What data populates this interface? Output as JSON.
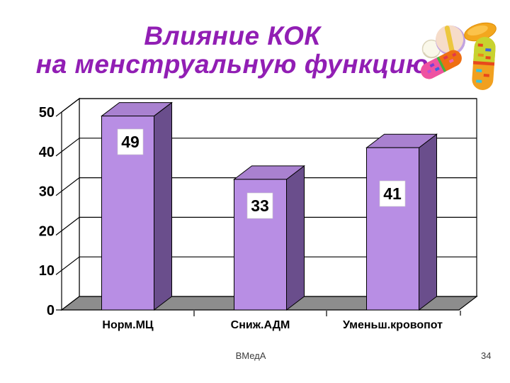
{
  "slide": {
    "title": {
      "line1": "Влияние КОК",
      "line2": "на менструальную функцию",
      "color": "#911EB4"
    },
    "footer": {
      "left": "ВМедА",
      "page_number": "34"
    }
  },
  "icons": {
    "clipart": "pills-clipart-icon"
  },
  "chart_data": {
    "type": "bar",
    "subtype": "3d-column",
    "title": "",
    "categories": [
      "Норм.МЦ",
      "Сниж.АДМ",
      "Уменьш.кровопот"
    ],
    "values": [
      49,
      33,
      41
    ],
    "data_labels": [
      "49",
      "33",
      "41"
    ],
    "y_ticks": [
      0,
      10,
      20,
      30,
      40,
      50
    ],
    "ylim": [
      0,
      50
    ],
    "xlabel": "",
    "ylabel": "",
    "grid": true,
    "legend": "none",
    "colors": {
      "bar_front": "#B88EE4",
      "bar_top": "#A981D0",
      "bar_side": "#6A4E8C",
      "floor": "#8D8D8D",
      "wall": "#FFFFFF",
      "axis_line": "#000000",
      "tick_label": "#000000",
      "data_label_bg": "#FFFFFF",
      "data_label_text": "#000000"
    }
  }
}
